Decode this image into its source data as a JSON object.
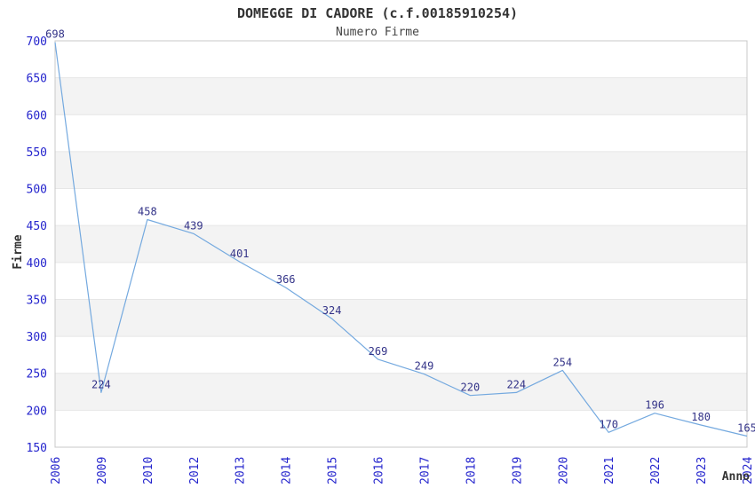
{
  "header": {
    "title": "DOMEGGE DI CADORE (c.f.00185910254)",
    "subtitle": "Numero Firme"
  },
  "chart_data": {
    "type": "line",
    "title": "DOMEGGE DI CADORE (c.f.00185910254)",
    "subtitle": "Numero Firme",
    "xlabel": "Anno",
    "ylabel": "Firme",
    "categories": [
      "2006",
      "2009",
      "2010",
      "2012",
      "2013",
      "2014",
      "2015",
      "2016",
      "2017",
      "2018",
      "2019",
      "2020",
      "2021",
      "2022",
      "2023",
      "2024"
    ],
    "values": [
      698,
      224,
      458,
      439,
      401,
      366,
      324,
      269,
      249,
      220,
      224,
      254,
      170,
      196,
      180,
      165
    ],
    "ylim": [
      150,
      700
    ],
    "yticks": [
      150,
      200,
      250,
      300,
      350,
      400,
      450,
      500,
      550,
      600,
      650,
      700
    ],
    "grid": "alternating-horizontal-bands",
    "legend": "none",
    "point_labels_visible": true,
    "colors": {
      "line": "#74a9df",
      "tick_label": "#2525cd",
      "value_label": "#333388",
      "band": "#f3f3f3",
      "gridline": "#e6e6e6",
      "plot_border": "#c8c8c8",
      "axis_title": "#333333",
      "title": "#333333",
      "background": "#ffffff"
    }
  }
}
